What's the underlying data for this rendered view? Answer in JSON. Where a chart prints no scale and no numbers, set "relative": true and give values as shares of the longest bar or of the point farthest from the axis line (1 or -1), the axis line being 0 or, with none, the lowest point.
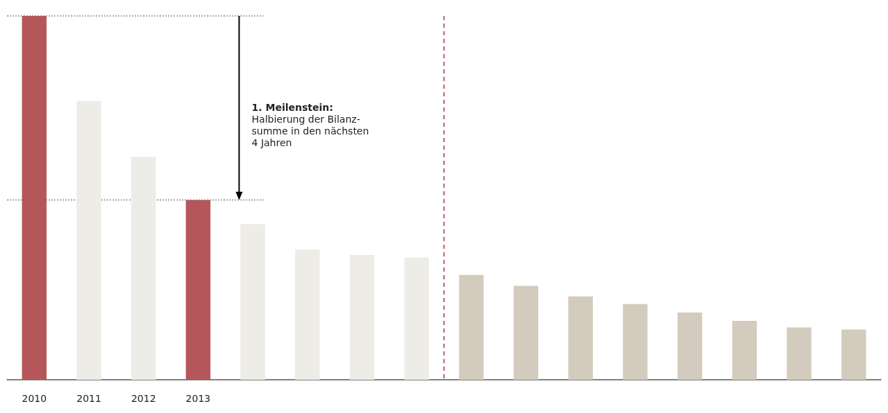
{
  "chart_data": {
    "type": "bar",
    "relative": true,
    "categories": [
      "2010",
      "2011",
      "2012",
      "2013",
      null,
      null,
      null,
      null,
      null,
      null,
      null,
      null,
      null,
      null,
      null,
      null
    ],
    "values": [
      1,
      0.766,
      0.613,
      0.494,
      0.428,
      0.358,
      0.343,
      0.336,
      0.288,
      0.258,
      0.229,
      0.208,
      0.185,
      0.162,
      0.144,
      0.138
    ],
    "colors": [
      "#b5575a",
      "#eeece6",
      "#eeece6",
      "#b5575a",
      "#eeece6",
      "#eeece6",
      "#eeece6",
      "#eeece6",
      "#d3cbbd",
      "#d3cbbd",
      "#d3cbbd",
      "#d3cbbd",
      "#d3cbbd",
      "#d3cbbd",
      "#d3cbbd",
      "#d3cbbd"
    ],
    "ref_lines": [
      {
        "axis": "y",
        "value": 1,
        "color": "#555555",
        "line_style": "dotted"
      },
      {
        "axis": "y",
        "value": 0.494,
        "color": "#555555",
        "line_style": "dotted"
      }
    ],
    "annotations": [
      "1. Meilenstein:",
      "Halbierung der Bilanz-\nsumme in den nächsten\n4 Jahren"
    ],
    "grid": false
  }
}
